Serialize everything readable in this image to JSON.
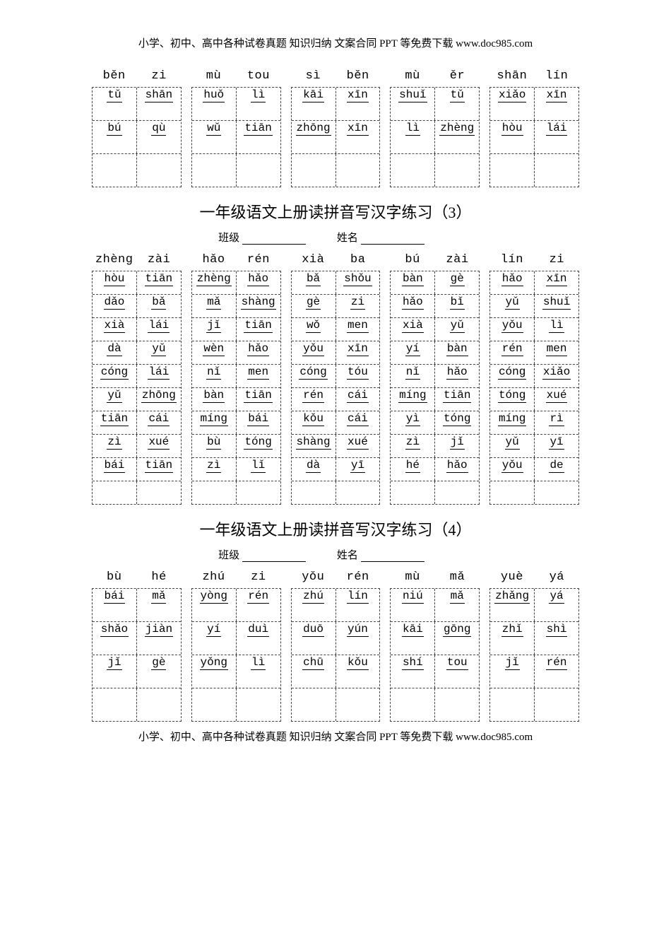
{
  "header_note": "小学、初中、高中各种试卷真题 知识归纳 文案合同 PPT 等免费下载  www.doc985.com",
  "footer_note": "小学、初中、高中各种试卷真题 知识归纳 文案合同 PPT 等免费下载  www.doc985.com",
  "section3_title": "一年级语文上册读拼音写汉字练习（3）",
  "section4_title": "一年级语文上册读拼音写汉字练习（4）",
  "label_class": "班级",
  "label_name": "姓名",
  "colors": {
    "text": "#000000",
    "background": "#ffffff",
    "border": "#444444"
  },
  "top_block": {
    "headers": [
      [
        "běn",
        "zi"
      ],
      [
        "mù",
        "tou"
      ],
      [
        "sì",
        "běn"
      ],
      [
        "mù",
        "ěr"
      ],
      [
        "shān",
        "lín"
      ]
    ],
    "rows": [
      [
        [
          "tǔ",
          "shān"
        ],
        [
          "huǒ",
          "lì"
        ],
        [
          "kāi",
          "xīn"
        ],
        [
          "shuǐ",
          "tǔ"
        ],
        [
          "xiǎo",
          "xīn"
        ]
      ],
      [
        [
          "bú",
          "qù"
        ],
        [
          "wǔ",
          "tiān"
        ],
        [
          "zhōng",
          "xīn"
        ],
        [
          "lì",
          "zhèng"
        ],
        [
          "hòu",
          "lái"
        ]
      ],
      [
        [
          "",
          ""
        ],
        [
          "",
          ""
        ],
        [
          "",
          ""
        ],
        [
          "",
          ""
        ],
        [
          "",
          ""
        ]
      ]
    ]
  },
  "section3": {
    "headers": [
      [
        "zhèng",
        "zài"
      ],
      [
        "hǎo",
        "rén"
      ],
      [
        "xià",
        "ba"
      ],
      [
        "bú",
        "zài"
      ],
      [
        "lín",
        "zi"
      ]
    ],
    "rows": [
      [
        [
          "hòu",
          "tiān"
        ],
        [
          "zhèng",
          "hǎo"
        ],
        [
          "bǎ",
          "shǒu"
        ],
        [
          "bàn",
          "gè"
        ],
        [
          "hǎo",
          "xīn"
        ]
      ],
      [
        [
          "dǎo",
          "bǎ"
        ],
        [
          "mǎ",
          "shàng"
        ],
        [
          "gè",
          "zi"
        ],
        [
          "hǎo",
          "bǐ"
        ],
        [
          "yǔ",
          "shuǐ"
        ]
      ],
      [
        [
          "xià",
          "lái"
        ],
        [
          "jǐ",
          "tiān"
        ],
        [
          "wǒ",
          "men"
        ],
        [
          "xià",
          "yǔ"
        ],
        [
          "yǒu",
          "lì"
        ]
      ],
      [
        [
          "dà",
          "yǔ"
        ],
        [
          "wèn",
          "hǎo"
        ],
        [
          "yǒu",
          "xīn"
        ],
        [
          "yí",
          "bàn"
        ],
        [
          "rén",
          "men"
        ]
      ],
      [
        [
          "cóng",
          "lái"
        ],
        [
          "nǐ",
          "men"
        ],
        [
          "cóng",
          "tóu"
        ],
        [
          "nǐ",
          "hǎo"
        ],
        [
          "cóng",
          "xiǎo"
        ]
      ],
      [
        [
          "yǔ",
          "zhōng"
        ],
        [
          "bàn",
          "tiān"
        ],
        [
          "rén",
          "cái"
        ],
        [
          "míng",
          "tiān"
        ],
        [
          "tóng",
          "xué"
        ]
      ],
      [
        [
          "tiān",
          "cái"
        ],
        [
          "míng",
          "bái"
        ],
        [
          "kǒu",
          "cái"
        ],
        [
          "yì",
          "tóng"
        ],
        [
          "míng",
          "rì"
        ]
      ],
      [
        [
          "zì",
          "xué"
        ],
        [
          "bù",
          "tóng"
        ],
        [
          "shàng",
          "xué"
        ],
        [
          "zì",
          "jǐ"
        ],
        [
          "yǔ",
          "yī"
        ]
      ],
      [
        [
          "bái",
          "tiān"
        ],
        [
          "zì",
          "lǐ"
        ],
        [
          "dà",
          "yī"
        ],
        [
          "hé",
          "hǎo"
        ],
        [
          "yǒu",
          "de"
        ]
      ],
      [
        [
          "",
          ""
        ],
        [
          "",
          ""
        ],
        [
          "",
          ""
        ],
        [
          "",
          ""
        ],
        [
          "",
          ""
        ]
      ]
    ]
  },
  "section4": {
    "headers": [
      [
        "bù",
        "hé"
      ],
      [
        "zhú",
        "zi"
      ],
      [
        "yǒu",
        "rén"
      ],
      [
        "mù",
        "mǎ"
      ],
      [
        "yuè",
        "yá"
      ]
    ],
    "rows": [
      [
        [
          "bái",
          "mǎ"
        ],
        [
          "yòng",
          "rén"
        ],
        [
          "zhú",
          "lín"
        ],
        [
          "niú",
          "mǎ"
        ],
        [
          "zhǎng",
          "yá"
        ]
      ],
      [
        [
          "shǎo",
          "jiàn"
        ],
        [
          "yí",
          "duì"
        ],
        [
          "duō",
          "yún"
        ],
        [
          "kāi",
          "gōng"
        ],
        [
          "zhǐ",
          "shì"
        ]
      ],
      [
        [
          "jǐ",
          "gè"
        ],
        [
          "yǒng",
          "lì"
        ],
        [
          "chū",
          "kǒu"
        ],
        [
          "shí",
          "tou"
        ],
        [
          "jǐ",
          "rén"
        ]
      ],
      [
        [
          "",
          ""
        ],
        [
          "",
          ""
        ],
        [
          "",
          ""
        ],
        [
          "",
          ""
        ],
        [
          "",
          ""
        ]
      ]
    ]
  }
}
